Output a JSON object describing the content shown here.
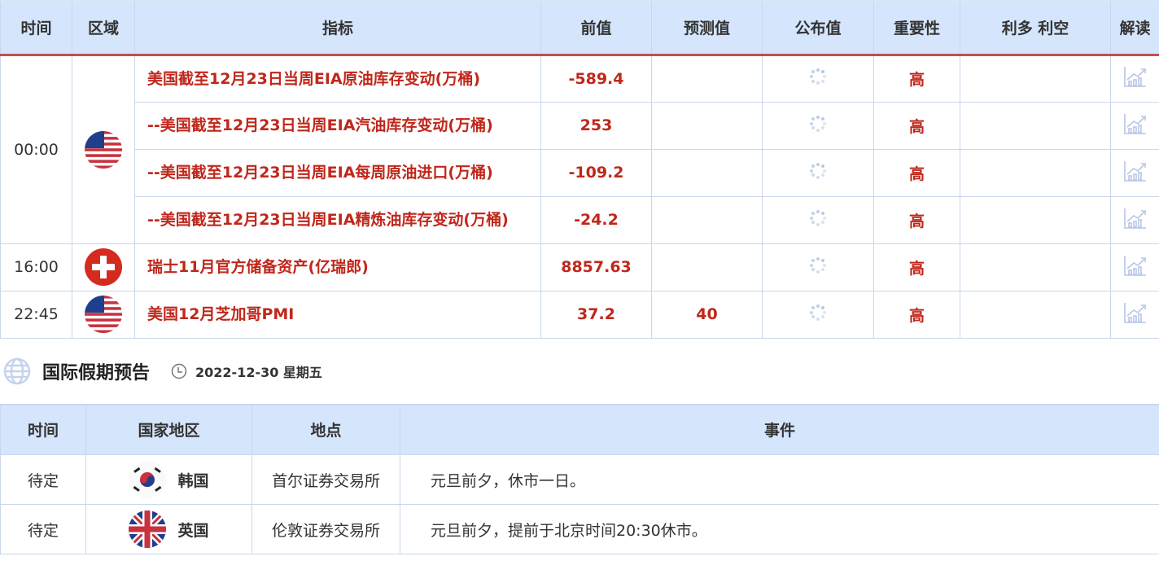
{
  "calendar": {
    "headers": [
      "时间",
      "区域",
      "指标",
      "前值",
      "预测值",
      "公布值",
      "重要性",
      "利多 利空",
      "解读"
    ],
    "groups": [
      {
        "time": "00:00",
        "flag": "us",
        "rows": [
          {
            "indicator": "美国截至12月23日当周EIA原油库存变动(万桶)",
            "previous": "-589.4",
            "forecast": "",
            "actual": "",
            "importance": "高"
          },
          {
            "indicator": "--美国截至12月23日当周EIA汽油库存变动(万桶)",
            "previous": "253",
            "forecast": "",
            "actual": "",
            "importance": "高"
          },
          {
            "indicator": "--美国截至12月23日当周EIA每周原油进口(万桶)",
            "previous": "-109.2",
            "forecast": "",
            "actual": "",
            "importance": "高"
          },
          {
            "indicator": "--美国截至12月23日当周EIA精炼油库存变动(万桶)",
            "previous": "-24.2",
            "forecast": "",
            "actual": "",
            "importance": "高"
          }
        ]
      },
      {
        "time": "16:00",
        "flag": "ch",
        "rows": [
          {
            "indicator": "瑞士11月官方储备资产(亿瑞郎)",
            "previous": "8857.63",
            "forecast": "",
            "actual": "",
            "importance": "高"
          }
        ]
      },
      {
        "time": "22:45",
        "flag": "us",
        "rows": [
          {
            "indicator": "美国12月芝加哥PMI",
            "previous": "37.2",
            "forecast": "40",
            "actual": "",
            "importance": "高"
          }
        ]
      }
    ]
  },
  "holiday": {
    "title": "国际假期预告",
    "date": "2022-12-30 星期五",
    "headers": [
      "时间",
      "国家地区",
      "地点",
      "事件"
    ],
    "rows": [
      {
        "time": "待定",
        "flag": "kr",
        "country": "韩国",
        "place": "首尔证券交易所",
        "event": "元旦前夕，休市一日。"
      },
      {
        "time": "待定",
        "flag": "uk",
        "country": "英国",
        "place": "伦敦证券交易所",
        "event": "元旦前夕，提前于北京时间20:30休市。"
      }
    ]
  },
  "colors": {
    "accent_red": "#c0271b",
    "header_bg": "#d5e5fb",
    "border": "#c9d7ec"
  }
}
